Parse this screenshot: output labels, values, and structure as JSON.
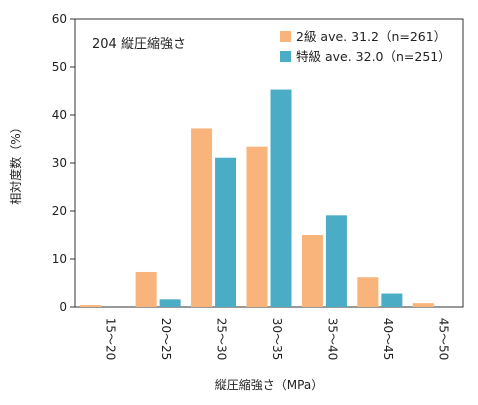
{
  "chart_data": {
    "type": "bar",
    "title": "",
    "annotation": "204 縦圧縮強さ",
    "xlabel": "縦圧縮強さ（MPa）",
    "ylabel": "相対度数（%）",
    "ylim": [
      0,
      60
    ],
    "yticks": [
      0,
      10,
      20,
      30,
      40,
      50,
      60
    ],
    "categories": [
      "15～20",
      "20～25",
      "25～30",
      "30～35",
      "35～40",
      "40～45",
      "45～50"
    ],
    "series": [
      {
        "name": "2級 ave. 31.2（n=261）",
        "color": "#F8B47A",
        "values": [
          0.4,
          7.3,
          37.2,
          33.4,
          15.0,
          6.2,
          0.8
        ]
      },
      {
        "name": "特級 ave. 32.0（n=251）",
        "color": "#4BACC6",
        "values": [
          0.0,
          1.6,
          31.1,
          45.3,
          19.1,
          2.8,
          0.0
        ]
      }
    ],
    "grid": false,
    "legend_position": "top-right"
  }
}
